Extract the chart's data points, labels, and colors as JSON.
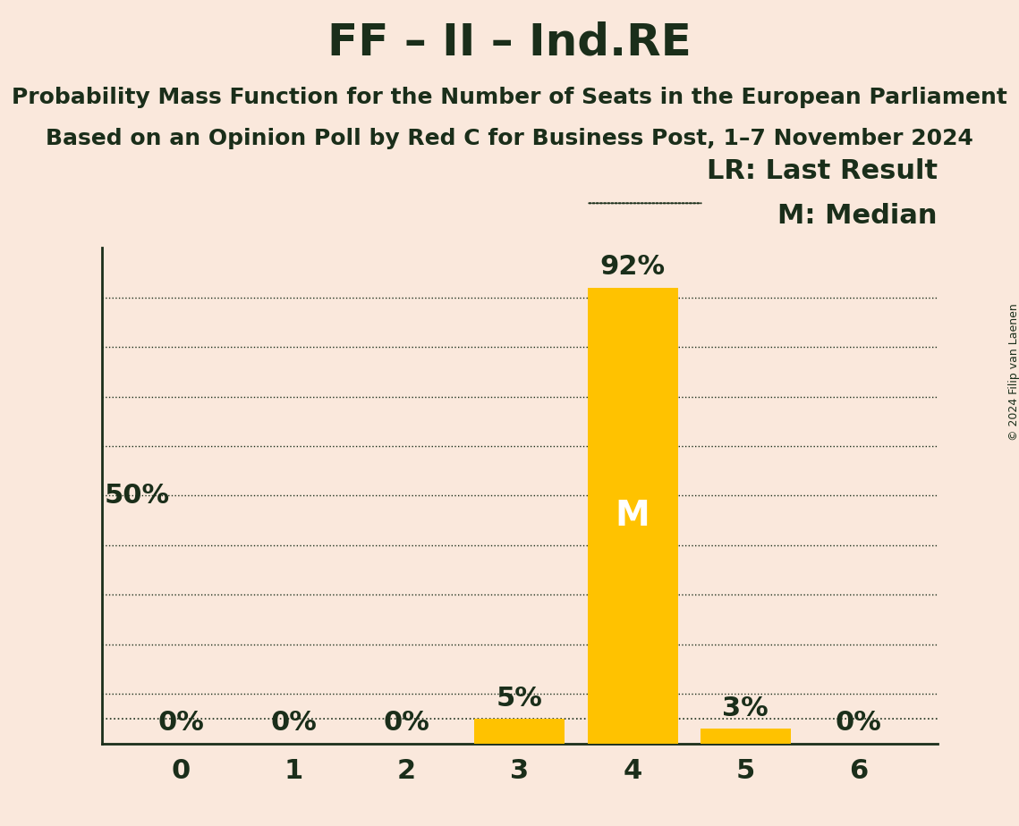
{
  "title": "FF – II – Ind.RE",
  "subtitle1": "Probability Mass Function for the Number of Seats in the European Parliament",
  "subtitle2": "Based on an Opinion Poll by Red C for Business Post, 1–7 November 2024",
  "copyright": "© 2024 Filip van Laenen",
  "categories": [
    0,
    1,
    2,
    3,
    4,
    5,
    6
  ],
  "values": [
    0,
    0,
    0,
    5,
    92,
    3,
    0
  ],
  "bar_color": "#FFC200",
  "background_color": "#FAE8DC",
  "text_color": "#1a2e1a",
  "median_idx": 4,
  "last_result_idx": 3,
  "ylabel_text": "50%",
  "legend_lr": "LR: Last Result",
  "legend_m": "M: Median",
  "ylim": [
    0,
    100
  ],
  "title_fontsize": 36,
  "subtitle_fontsize": 18,
  "axis_fontsize": 22,
  "bar_label_fontsize": 22,
  "ylabel_fontsize": 22
}
